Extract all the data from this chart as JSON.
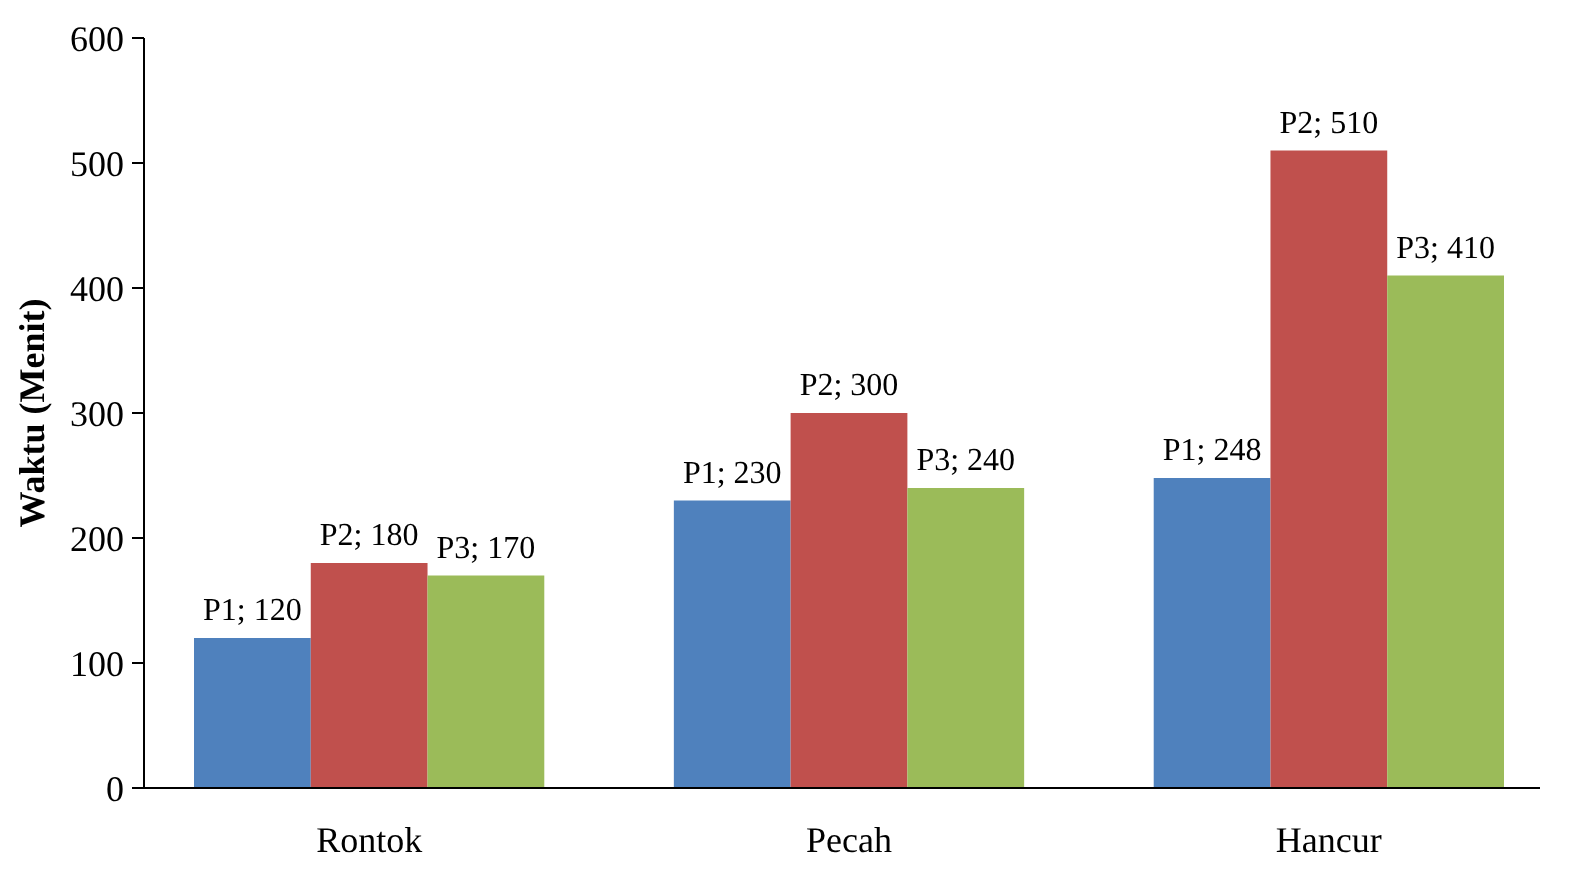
{
  "chart_data": {
    "type": "bar",
    "ylabel": "Waktu (Menit)",
    "categories": [
      "Rontok",
      "Pecah",
      "Hancur"
    ],
    "series": [
      {
        "color": "#4f81bd",
        "values": [
          120,
          230,
          248
        ],
        "value_labels": [
          "P1; 120",
          "P1; 230",
          "P1; 248"
        ]
      },
      {
        "color": "#c0504d",
        "values": [
          180,
          300,
          510
        ],
        "value_labels": [
          "P2; 180",
          "P2; 300",
          "P2; 510"
        ]
      },
      {
        "color": "#9bbb59",
        "values": [
          170,
          240,
          410
        ],
        "value_labels": [
          "P3; 170",
          "P3; 240",
          "P3; 410"
        ]
      }
    ],
    "ylim": [
      0,
      600
    ],
    "yticks": [
      0,
      100,
      200,
      300,
      400,
      500,
      600
    ]
  }
}
